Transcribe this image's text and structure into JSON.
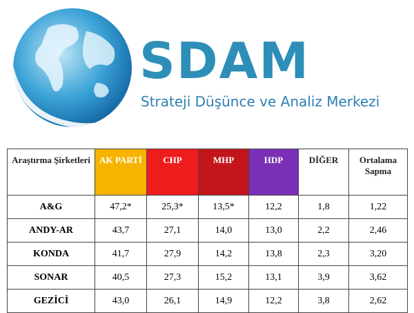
{
  "header": {
    "title": "SDAM",
    "subtitle": "Strateji Düşünce ve Analiz Merkezi"
  },
  "table": {
    "columns": [
      "Araştırma Şirketleri",
      "AK PARTİ",
      "CHP",
      "MHP",
      "HDP",
      "DİĞER",
      "Ortalama Sapma"
    ],
    "rows": [
      [
        "A&G",
        "47,2*",
        "25,3*",
        "13,5*",
        "12,2",
        "1,8",
        "1,22"
      ],
      [
        "ANDY-AR",
        "43,7",
        "27,1",
        "14,0",
        "13,0",
        "2,2",
        "2,46"
      ],
      [
        "KONDA",
        "41,7",
        "27,9",
        "14,2",
        "13,8",
        "2,3",
        "3,20"
      ],
      [
        "SONAR",
        "40,5",
        "27,3",
        "15,2",
        "13,1",
        "3,9",
        "3,62"
      ],
      [
        "GEZİCİ",
        "43,0",
        "26,1",
        "14,9",
        "12,2",
        "3,8",
        "2,62"
      ]
    ]
  }
}
